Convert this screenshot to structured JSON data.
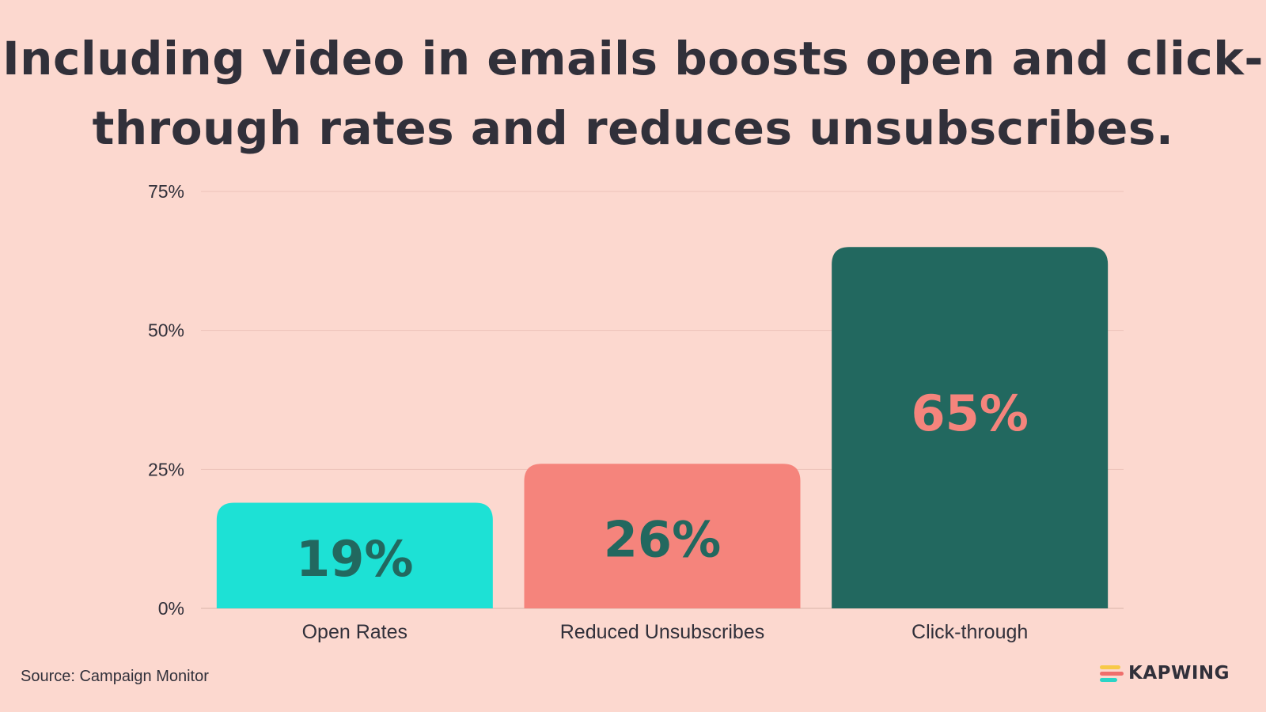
{
  "title_lines": [
    "Including video in emails boosts open and click-",
    "through rates and reduces unsubscribes."
  ],
  "source": "Source: Campaign Monitor",
  "brand": {
    "name": "KAPWING",
    "icon": "kapwing-logo-icon",
    "colors": [
      "#f7c948",
      "#ef6f6c",
      "#2bd4c6"
    ]
  },
  "chart_data": {
    "type": "bar",
    "categories": [
      "Open Rates",
      "Reduced Unsubscribes",
      "Click-through"
    ],
    "values": [
      19,
      26,
      65
    ],
    "value_labels": [
      "19%",
      "26%",
      "65%"
    ],
    "bar_colors": [
      "#1de1d5",
      "#f5847c",
      "#22685f"
    ],
    "label_colors": [
      "#22685f",
      "#22685f",
      "#f5847c"
    ],
    "ylim": [
      0,
      75
    ],
    "yticks": [
      0,
      25,
      50,
      75
    ],
    "ytick_labels": [
      "0%",
      "25%",
      "50%",
      "75%"
    ],
    "grid": true,
    "legend": false
  }
}
